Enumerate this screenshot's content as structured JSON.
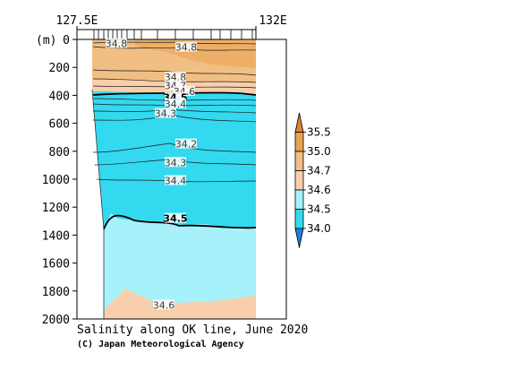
{
  "chart_data": {
    "type": "heatmap",
    "title": "Salinity along OK line, June 2020",
    "credit": "(C) Japan Meteorological Agency",
    "x_ticks": [
      "127.5E",
      "132E"
    ],
    "y_unit": "(m)",
    "y_ticks": [
      0,
      200,
      400,
      600,
      800,
      1000,
      1200,
      1400,
      1600,
      1800,
      2000
    ],
    "ylim": [
      0,
      2000
    ],
    "y_inverted": true,
    "colorbar_levels": [
      34.0,
      34.5,
      34.6,
      34.7,
      35.0,
      35.5
    ],
    "colorbar_labels": [
      "35.5",
      "35.0",
      "34.7",
      "34.6",
      "34.5",
      "34.0"
    ],
    "colors": {
      "below_34_0": "#1f7fd9",
      "34_0_to_34_5": "#33d9ef",
      "34_5_to_34_6": "#a7f1fb",
      "34_6_to_34_7": "#f8cfad",
      "34_7_to_35_0": "#f1bf83",
      "35_0_to_35_5": "#e9a251",
      "above_35_5": "#d9862e"
    },
    "contour_labels": [
      {
        "text": "34.8",
        "depth": 30
      },
      {
        "text": "34.8",
        "depth": 55
      },
      {
        "text": "34.8",
        "depth": 270
      },
      {
        "text": "34.7",
        "depth": 330
      },
      {
        "text": "34.6",
        "depth": 372
      },
      {
        "text": "34.5",
        "depth": 415,
        "bold": true
      },
      {
        "text": "34.4",
        "depth": 460
      },
      {
        "text": "34.3",
        "depth": 530
      },
      {
        "text": "34.2",
        "depth": 748
      },
      {
        "text": "34.3",
        "depth": 880
      },
      {
        "text": "34.4",
        "depth": 1010
      },
      {
        "text": "34.5",
        "depth": 1280,
        "bold": true
      },
      {
        "text": "34.6",
        "depth": 1900
      }
    ]
  }
}
